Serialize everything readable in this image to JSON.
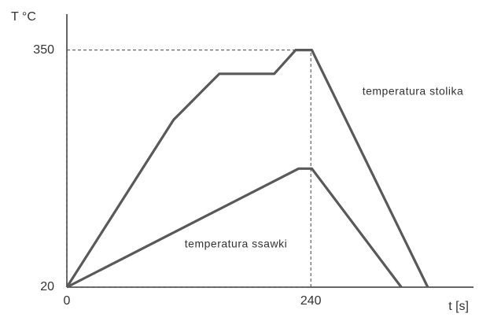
{
  "chart_data": {
    "type": "line",
    "ylabel": "T °C",
    "xlabel": "t [s]",
    "xlim": [
      0,
      400
    ],
    "ylim": [
      20,
      400
    ],
    "xticks": [
      0,
      240
    ],
    "yticks": [
      20,
      350
    ],
    "series": [
      {
        "name": "temperatura stolika",
        "color": "#595959",
        "x": [
          0,
          105,
          150,
          204,
          225,
          241,
          355
        ],
        "values": [
          20,
          253,
          317,
          317,
          350,
          350,
          20
        ]
      },
      {
        "name": "temperatura ssawki",
        "color": "#595959",
        "x": [
          0,
          228,
          241,
          329
        ],
        "values": [
          20,
          185,
          185,
          20
        ]
      }
    ]
  }
}
